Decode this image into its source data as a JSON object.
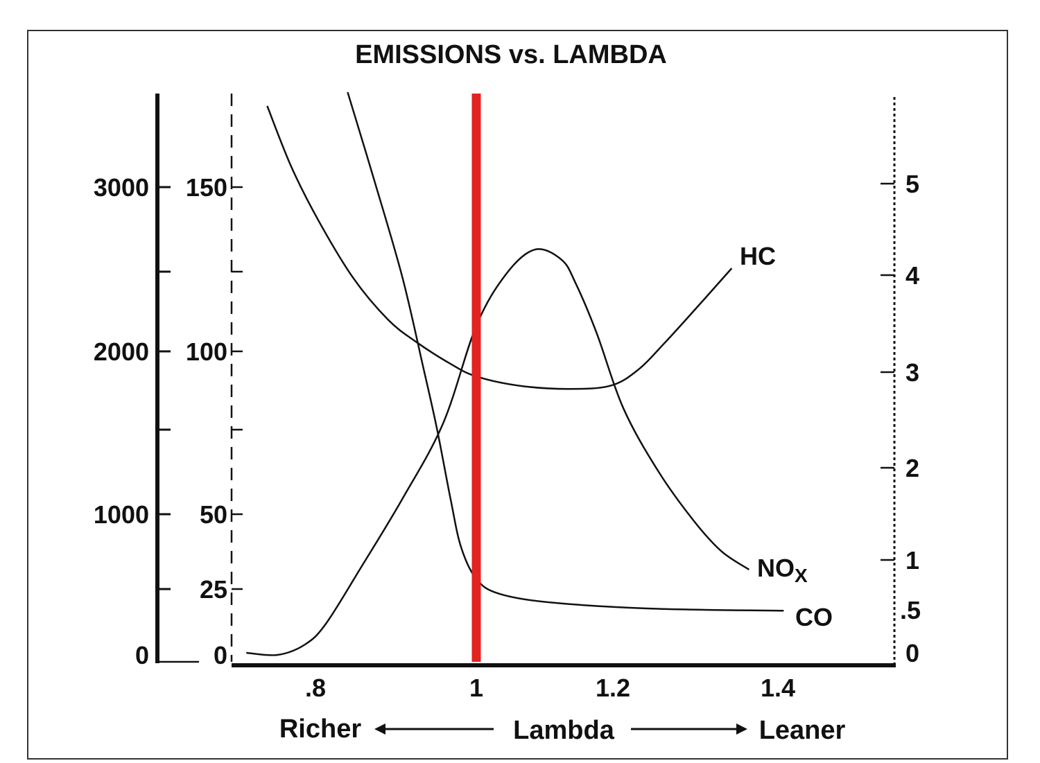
{
  "chart_data": {
    "type": "line",
    "title": "EMISSIONS vs. LAMBDA",
    "xlabel": "Lambda",
    "xlabel_left": "Richer",
    "xlabel_right": "Leaner",
    "x_ticks": [
      {
        "value": 0.8,
        "label": ".8"
      },
      {
        "value": 1.0,
        "label": "1"
      },
      {
        "value": 1.2,
        "label": "1.2"
      },
      {
        "value": 1.4,
        "label": "1.4"
      }
    ],
    "y_axes": {
      "left_outer": {
        "ticks": [
          {
            "value": 0,
            "label": "0"
          },
          {
            "value": 500,
            "label": ""
          },
          {
            "value": 1000,
            "label": "1000"
          },
          {
            "value": 1500,
            "label": ""
          },
          {
            "value": 2000,
            "label": "2000"
          },
          {
            "value": 2500,
            "label": ""
          },
          {
            "value": 3000,
            "label": "3000"
          }
        ],
        "style": "solid"
      },
      "left_inner": {
        "ticks": [
          {
            "value": 0,
            "label": "0"
          },
          {
            "value": 25,
            "label": "25"
          },
          {
            "value": 50,
            "label": "50"
          },
          {
            "value": 75,
            "label": ""
          },
          {
            "value": 100,
            "label": "100"
          },
          {
            "value": 125,
            "label": ""
          },
          {
            "value": 150,
            "label": "150"
          }
        ],
        "style": "dashed"
      },
      "right": {
        "ticks": [
          {
            "value": 0,
            "label": "0"
          },
          {
            "value": 0.5,
            "label": ".5"
          },
          {
            "value": 1,
            "label": "1"
          },
          {
            "value": 2,
            "label": "2"
          },
          {
            "value": 3,
            "label": "3"
          },
          {
            "value": 4,
            "label": "4"
          },
          {
            "value": 5,
            "label": "5"
          }
        ],
        "style": "dotted"
      }
    },
    "reference_line": {
      "x": 1.0,
      "color": "#e32222"
    },
    "grid": false,
    "series": [
      {
        "name": "HC",
        "axis": "left_inner",
        "color": "#111111",
        "points": [
          [
            0.74,
            174
          ],
          [
            0.77,
            156
          ],
          [
            0.804,
            140
          ],
          [
            0.847,
            123
          ],
          [
            0.89,
            110
          ],
          [
            0.925,
            103
          ],
          [
            0.968,
            96
          ],
          [
            1.0,
            92
          ],
          [
            1.064,
            89
          ],
          [
            1.135,
            88
          ],
          [
            1.196,
            89
          ],
          [
            1.23,
            94
          ],
          [
            1.264,
            103
          ],
          [
            1.306,
            115
          ],
          [
            1.344,
            126
          ]
        ]
      },
      {
        "name": "NOx",
        "axis": "left_outer",
        "color": "#111111",
        "points": [
          [
            0.714,
            16
          ],
          [
            0.753,
            0
          ],
          [
            0.787,
            79
          ],
          [
            0.813,
            237
          ],
          [
            0.856,
            639
          ],
          [
            0.908,
            1090
          ],
          [
            0.959,
            1544
          ],
          [
            1.0,
            2161
          ],
          [
            1.044,
            2487
          ],
          [
            1.086,
            2631
          ],
          [
            1.125,
            2570
          ],
          [
            1.146,
            2422
          ],
          [
            1.176,
            2117
          ],
          [
            1.213,
            1633
          ],
          [
            1.255,
            1254
          ],
          [
            1.297,
            963
          ],
          [
            1.331,
            755
          ],
          [
            1.365,
            630
          ]
        ]
      },
      {
        "name": "CO",
        "axis": "right",
        "color": "#111111",
        "points": [
          [
            0.84,
            6.0
          ],
          [
            0.873,
            5.04
          ],
          [
            0.908,
            3.98
          ],
          [
            0.934,
            3.05
          ],
          [
            0.951,
            2.41
          ],
          [
            0.968,
            1.66
          ],
          [
            0.981,
            1.14
          ],
          [
            1.0,
            0.81
          ],
          [
            1.034,
            0.66
          ],
          [
            1.115,
            0.57
          ],
          [
            1.255,
            0.51
          ],
          [
            1.407,
            0.49
          ]
        ]
      }
    ]
  }
}
